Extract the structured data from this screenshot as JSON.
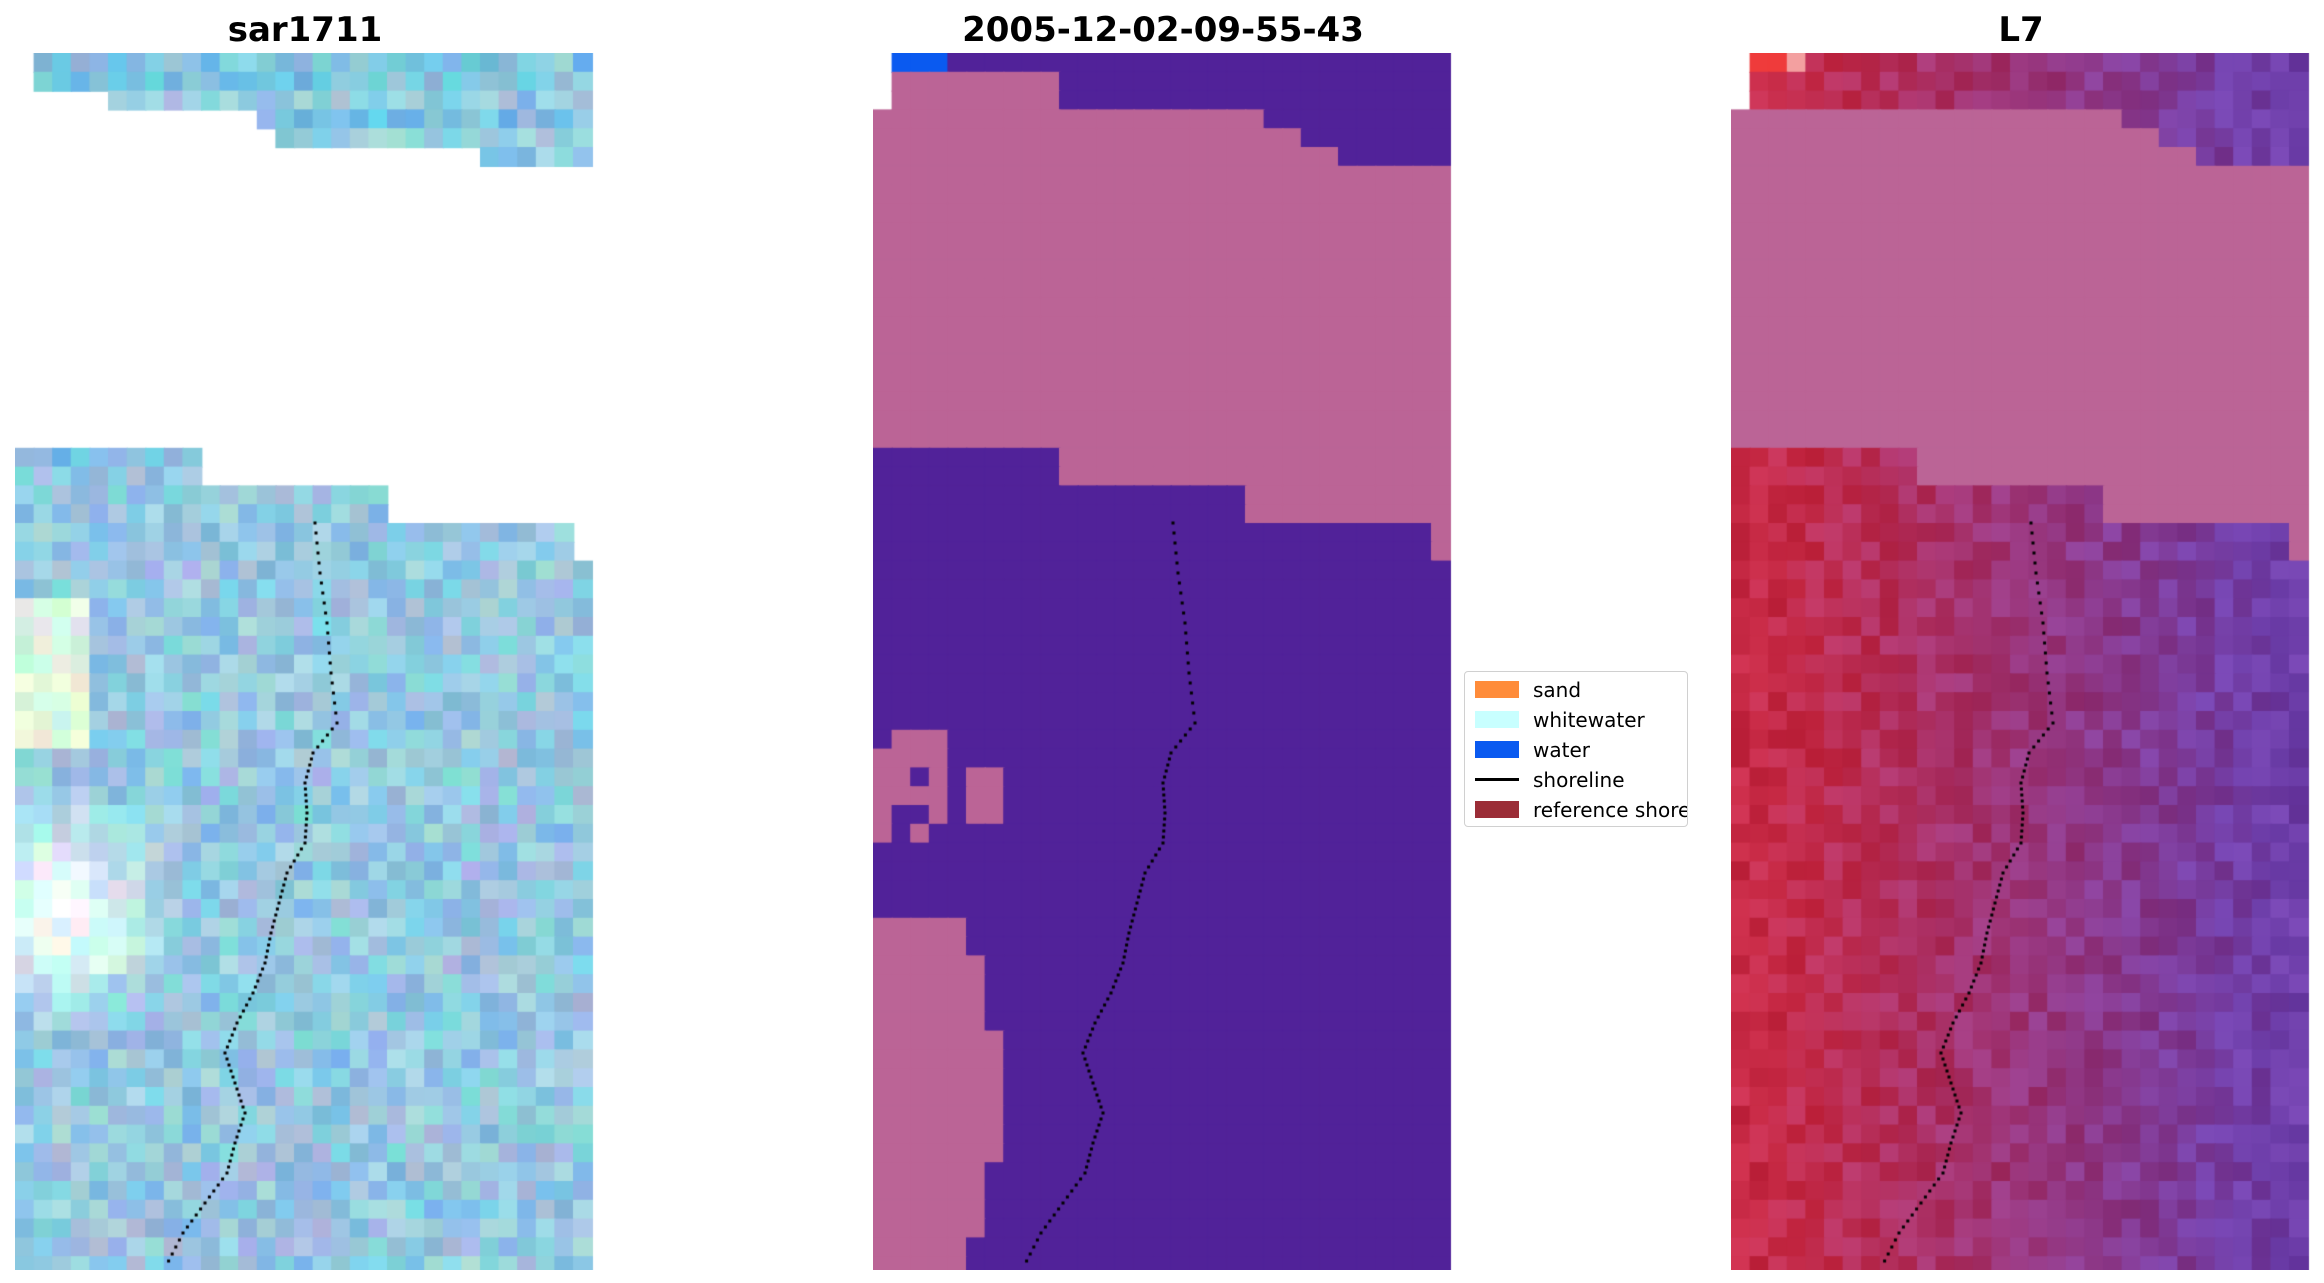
{
  "panels": [
    {
      "title": "sar1711"
    },
    {
      "title": "2005-12-02-09-55-43"
    },
    {
      "title": "L7"
    }
  ],
  "legend": {
    "items": [
      {
        "label": "sand",
        "color": "#ff8c3a",
        "kind": "patch"
      },
      {
        "label": "whitewater",
        "color": "#c8ffff",
        "kind": "patch"
      },
      {
        "label": "water",
        "color": "#0a5af0",
        "kind": "patch"
      },
      {
        "label": "shoreline",
        "color": "#000000",
        "kind": "line"
      },
      {
        "label": "reference shoreline",
        "color": "#9b2d37",
        "kind": "patch"
      }
    ]
  },
  "colors": {
    "sand_overlay": "#bb6496",
    "water_class": "#512299",
    "water_edge": "#0a5af0",
    "shoreline": "#000000"
  }
}
